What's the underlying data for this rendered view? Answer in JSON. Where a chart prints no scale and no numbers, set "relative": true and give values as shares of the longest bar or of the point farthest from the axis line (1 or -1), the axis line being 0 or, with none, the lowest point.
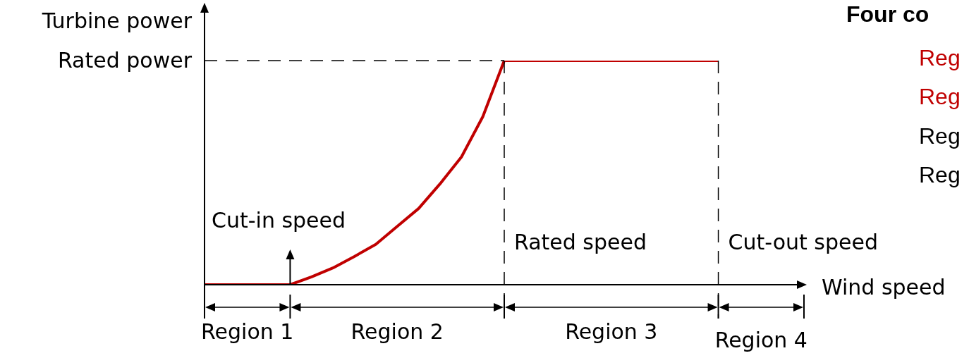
{
  "chart_data": {
    "type": "line",
    "ylabel": "Turbine power",
    "xlabel": "Wind speed",
    "relative": true,
    "tick_labels": false,
    "marker": "none",
    "line_style": "solid",
    "categories": [
      null,
      null,
      null,
      null,
      null,
      null,
      null,
      null,
      null,
      null,
      null,
      null,
      null,
      null,
      null,
      null,
      null,
      null,
      null,
      null,
      null,
      null,
      null,
      null,
      null,
      null,
      null,
      null,
      null
    ],
    "series": [
      {
        "color": "#c00000",
        "values": [
          0,
          0,
          0,
          0,
          0,
          0.035,
          0.075,
          0.126,
          0.18,
          0.26,
          0.34,
          0.45,
          0.57,
          0.75,
          1,
          1,
          1,
          1,
          1,
          1,
          1,
          1,
          1,
          1,
          1,
          null,
          null,
          null,
          null
        ]
      }
    ],
    "ref_lines": [
      {
        "axis": "y",
        "value": 1,
        "label": "Rated power",
        "line_style": "dashed"
      }
    ],
    "annotations": [
      "Cut-in speed",
      "Rated speed",
      "Cut-out speed",
      "Region 1",
      "Region 2",
      "Region 3",
      "Region 4",
      "Four co",
      "Reg",
      "Reg",
      "Reg",
      "Reg"
    ]
  }
}
